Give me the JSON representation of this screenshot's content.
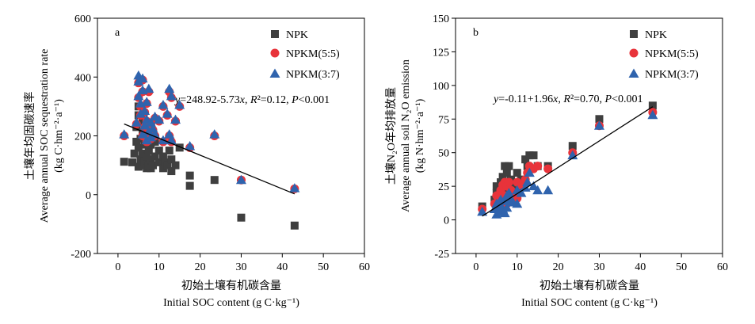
{
  "chart_data": [
    {
      "type": "scatter",
      "panel_label": "a",
      "ylabel_cn": "土壤年均固碳速率",
      "ylabel_en": "Average annual SOC sequestration rate",
      "ylabel_unit": "(kg C·hm⁻²·a⁻¹)",
      "xlabel_cn": "初始土壤有机碳含量",
      "xlabel_en": "Initial SOC content (g C·kg⁻¹)",
      "xlim": [
        -5,
        60
      ],
      "ylim": [
        -200,
        600
      ],
      "xticks": [
        0,
        10,
        20,
        30,
        40,
        50,
        60
      ],
      "yticks": [
        -200,
        0,
        200,
        400,
        600
      ],
      "legend_position": "top-right",
      "equation": "y=248.92-5.73x, R²=0.12, P<0.001",
      "fit_line": {
        "x": [
          1.5,
          43
        ],
        "y": [
          240.3,
          2.5
        ]
      },
      "series": [
        {
          "name": "NPK",
          "marker": "square",
          "color": "#3f3f3f",
          "points": [
            [
              1.5,
              112
            ],
            [
              3.5,
              110
            ],
            [
              4,
              140
            ],
            [
              4.5,
              180
            ],
            [
              4.5,
              230
            ],
            [
              5,
              95
            ],
            [
              5,
              160
            ],
            [
              5,
              270
            ],
            [
              5,
              300
            ],
            [
              5.5,
              120
            ],
            [
              5.5,
              190
            ],
            [
              6,
              100
            ],
            [
              6,
              140
            ],
            [
              6,
              210
            ],
            [
              6,
              250
            ],
            [
              6.5,
              110
            ],
            [
              6.5,
              170
            ],
            [
              7,
              90
            ],
            [
              7,
              130
            ],
            [
              7,
              200
            ],
            [
              7.5,
              100
            ],
            [
              7.5,
              150
            ],
            [
              8,
              90
            ],
            [
              8,
              120
            ],
            [
              8,
              170
            ],
            [
              8.5,
              100
            ],
            [
              9,
              130
            ],
            [
              9,
              180
            ],
            [
              10,
              110
            ],
            [
              10,
              150
            ],
            [
              11,
              90
            ],
            [
              11,
              130
            ],
            [
              11.5,
              110
            ],
            [
              12,
              100
            ],
            [
              12.5,
              150
            ],
            [
              13,
              80
            ],
            [
              13,
              120
            ],
            [
              14,
              100
            ],
            [
              15,
              160
            ],
            [
              17.5,
              30
            ],
            [
              17.5,
              65
            ],
            [
              23.5,
              50
            ],
            [
              30,
              -78
            ],
            [
              43,
              -105
            ]
          ]
        },
        {
          "name": "NPKM(5:5)",
          "marker": "circle",
          "color": "#e8333a",
          "points": [
            [
              1.5,
              200
            ],
            [
              4.5,
              240
            ],
            [
              5,
              330
            ],
            [
              5,
              380
            ],
            [
              5.5,
              270
            ],
            [
              5.5,
              300
            ],
            [
              6,
              200
            ],
            [
              6,
              350
            ],
            [
              6,
              390
            ],
            [
              6.5,
              230
            ],
            [
              6.5,
              280
            ],
            [
              7,
              180
            ],
            [
              7,
              250
            ],
            [
              7,
              310
            ],
            [
              7.5,
              210
            ],
            [
              7.5,
              350
            ],
            [
              8,
              190
            ],
            [
              8,
              240
            ],
            [
              8.5,
              220
            ],
            [
              9,
              200
            ],
            [
              9,
              260
            ],
            [
              10,
              250
            ],
            [
              11,
              180
            ],
            [
              11,
              300
            ],
            [
              12,
              270
            ],
            [
              12.5,
              200
            ],
            [
              12.5,
              350
            ],
            [
              13,
              180
            ],
            [
              13,
              330
            ],
            [
              14,
              250
            ],
            [
              15,
              300
            ],
            [
              17.5,
              160
            ],
            [
              23.5,
              200
            ],
            [
              30,
              50
            ],
            [
              43,
              20
            ]
          ]
        },
        {
          "name": "NPKM(3:7)",
          "marker": "triangle",
          "color": "#2f63ad",
          "points": [
            [
              1.5,
              205
            ],
            [
              4.5,
              245
            ],
            [
              5,
              335
            ],
            [
              5,
              385
            ],
            [
              5,
              405
            ],
            [
              5.5,
              275
            ],
            [
              5.5,
              310
            ],
            [
              6,
              205
            ],
            [
              6,
              355
            ],
            [
              6,
              395
            ],
            [
              6.5,
              235
            ],
            [
              6.5,
              285
            ],
            [
              7,
              185
            ],
            [
              7,
              255
            ],
            [
              7,
              315
            ],
            [
              7.5,
              215
            ],
            [
              7.5,
              360
            ],
            [
              8,
              195
            ],
            [
              8,
              245
            ],
            [
              8.5,
              225
            ],
            [
              9,
              205
            ],
            [
              9,
              265
            ],
            [
              10,
              255
            ],
            [
              11,
              185
            ],
            [
              11,
              305
            ],
            [
              12,
              275
            ],
            [
              12.5,
              205
            ],
            [
              12.5,
              360
            ],
            [
              13,
              185
            ],
            [
              13,
              335
            ],
            [
              14,
              255
            ],
            [
              15,
              305
            ],
            [
              17.5,
              165
            ],
            [
              23.5,
              205
            ],
            [
              30,
              50
            ],
            [
              43,
              22
            ]
          ]
        }
      ]
    },
    {
      "type": "scatter",
      "panel_label": "b",
      "ylabel_cn": "土壤N₂O年均排放量",
      "ylabel_en": "Average annual soil N₂O emission",
      "ylabel_unit": "(kg N·hm⁻²·a⁻¹)",
      "xlabel_cn": "初始土壤有机碳含量",
      "xlabel_en": "Initial SOC content (g C·kg⁻¹)",
      "xlim": [
        -5,
        60
      ],
      "ylim": [
        -25,
        150
      ],
      "xticks": [
        0,
        10,
        20,
        30,
        40,
        50,
        60
      ],
      "yticks": [
        -25,
        0,
        25,
        50,
        75,
        100,
        125,
        150
      ],
      "legend_position": "top-right",
      "equation": "y=-0.11+1.96x, R²=0.70, P<0.001",
      "fit_line": {
        "x": [
          1.5,
          43
        ],
        "y": [
          2.8,
          84.2
        ]
      },
      "series": [
        {
          "name": "NPK",
          "marker": "square",
          "color": "#3f3f3f",
          "points": [
            [
              1.5,
              10
            ],
            [
              4.5,
              15
            ],
            [
              5,
              20
            ],
            [
              5,
              25
            ],
            [
              5.5,
              12
            ],
            [
              6,
              18
            ],
            [
              6,
              28
            ],
            [
              6.5,
              32
            ],
            [
              7,
              22
            ],
            [
              7,
              40
            ],
            [
              7.5,
              15
            ],
            [
              7.5,
              35
            ],
            [
              8,
              40
            ],
            [
              8.5,
              30
            ],
            [
              9,
              25
            ],
            [
              10,
              35
            ],
            [
              10,
              20
            ],
            [
              11,
              30
            ],
            [
              12,
              45
            ],
            [
              12.5,
              40
            ],
            [
              13,
              48
            ],
            [
              14,
              48
            ],
            [
              15,
              40
            ],
            [
              17.5,
              40
            ],
            [
              23.5,
              55
            ],
            [
              30,
              75
            ],
            [
              43,
              85
            ]
          ]
        },
        {
          "name": "NPKM(5:5)",
          "marker": "circle",
          "color": "#e8333a",
          "points": [
            [
              1.5,
              8
            ],
            [
              4.5,
              12
            ],
            [
              5,
              18
            ],
            [
              5,
              8
            ],
            [
              5.5,
              10
            ],
            [
              6,
              15
            ],
            [
              6,
              22
            ],
            [
              6.5,
              26
            ],
            [
              7,
              18
            ],
            [
              7,
              28
            ],
            [
              7.5,
              12
            ],
            [
              7.5,
              25
            ],
            [
              8,
              28
            ],
            [
              8.5,
              22
            ],
            [
              9,
              20
            ],
            [
              10,
              28
            ],
            [
              10,
              16
            ],
            [
              11,
              26
            ],
            [
              12,
              30
            ],
            [
              12.5,
              35
            ],
            [
              13,
              40
            ],
            [
              14,
              38
            ],
            [
              15,
              40
            ],
            [
              17.5,
              38
            ],
            [
              23.5,
              50
            ],
            [
              30,
              70
            ],
            [
              43,
              80
            ]
          ]
        },
        {
          "name": "NPKM(3:7)",
          "marker": "triangle",
          "color": "#2f63ad",
          "points": [
            [
              1.5,
              6
            ],
            [
              4.5,
              8
            ],
            [
              5,
              12
            ],
            [
              5,
              4
            ],
            [
              5.5,
              6
            ],
            [
              6,
              10
            ],
            [
              6,
              15
            ],
            [
              6.5,
              8
            ],
            [
              7,
              14
            ],
            [
              7,
              5
            ],
            [
              7.5,
              9
            ],
            [
              7.5,
              18
            ],
            [
              8,
              20
            ],
            [
              8.5,
              15
            ],
            [
              9,
              13
            ],
            [
              10,
              22
            ],
            [
              10,
              12
            ],
            [
              11,
              20
            ],
            [
              12,
              24
            ],
            [
              12.5,
              28
            ],
            [
              13,
              35
            ],
            [
              14,
              25
            ],
            [
              15,
              22
            ],
            [
              17.5,
              22
            ],
            [
              23.5,
              48
            ],
            [
              30,
              70
            ],
            [
              43,
              78
            ]
          ]
        }
      ]
    }
  ]
}
